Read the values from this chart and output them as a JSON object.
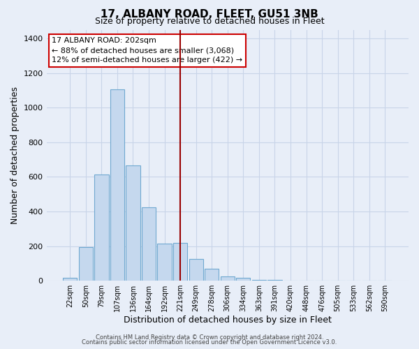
{
  "title": "17, ALBANY ROAD, FLEET, GU51 3NB",
  "subtitle": "Size of property relative to detached houses in Fleet",
  "xlabel": "Distribution of detached houses by size in Fleet",
  "ylabel": "Number of detached properties",
  "bar_labels": [
    "22sqm",
    "50sqm",
    "79sqm",
    "107sqm",
    "136sqm",
    "164sqm",
    "192sqm",
    "221sqm",
    "249sqm",
    "278sqm",
    "306sqm",
    "334sqm",
    "363sqm",
    "391sqm",
    "420sqm",
    "448sqm",
    "476sqm",
    "505sqm",
    "533sqm",
    "562sqm",
    "590sqm"
  ],
  "bar_values": [
    15,
    195,
    615,
    1105,
    665,
    425,
    215,
    220,
    125,
    68,
    25,
    18,
    5,
    3,
    0,
    0,
    0,
    0,
    0,
    0,
    0
  ],
  "bar_color": "#c5d8ee",
  "bar_edge_color": "#6fa8d0",
  "ylim": [
    0,
    1450
  ],
  "yticks": [
    0,
    200,
    400,
    600,
    800,
    1000,
    1200,
    1400
  ],
  "vline_x": 7.0,
  "vline_color": "#990000",
  "annotation_title": "17 ALBANY ROAD: 202sqm",
  "annotation_line1": "← 88% of detached houses are smaller (3,068)",
  "annotation_line2": "12% of semi-detached houses are larger (422) →",
  "annotation_box_color": "#ffffff",
  "annotation_box_edge": "#cc0000",
  "footer_line1": "Contains HM Land Registry data © Crown copyright and database right 2024.",
  "footer_line2": "Contains public sector information licensed under the Open Government Licence v3.0.",
  "background_color": "#e8eef8",
  "grid_color": "#c8d4e8"
}
